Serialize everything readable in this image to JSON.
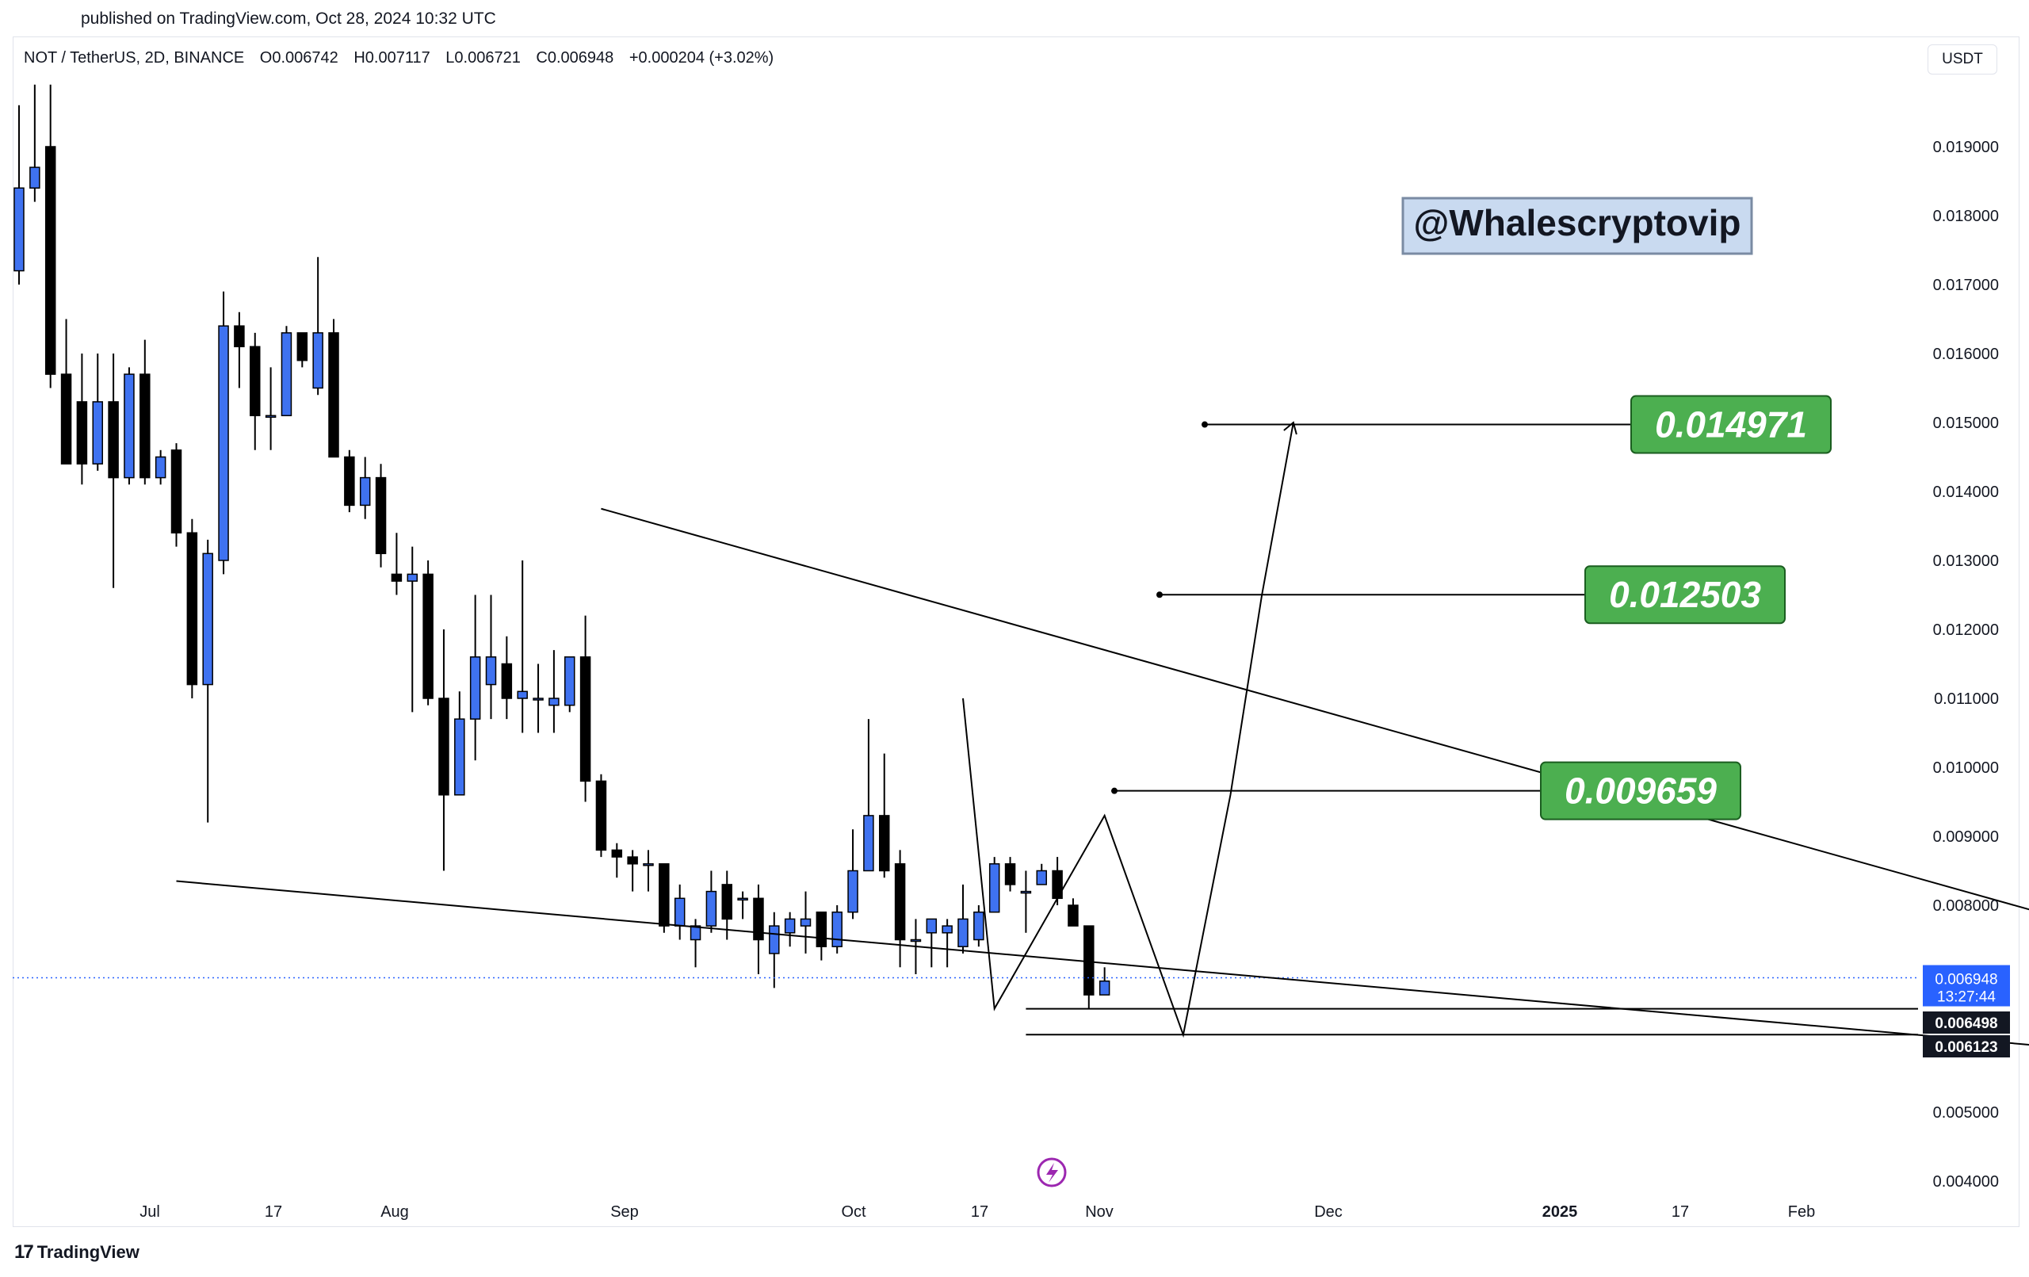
{
  "header": {
    "published": "published on TradingView.com, Oct 28, 2024 10:32 UTC"
  },
  "legend": {
    "symbol": "NOT / TetherUS, 2D, BINANCE",
    "open": "O0.006742",
    "high": "H0.007117",
    "low": "L0.006721",
    "close": "C0.006948",
    "change": "+0.000204 (+3.02%)"
  },
  "currency_button": "USDT",
  "watermark": "@Whalescryptovip",
  "footer": {
    "brand": "TradingView"
  },
  "colors": {
    "up": "#2962ff",
    "up_fill": "#3f72f0",
    "down": "#000000",
    "target_box": "#4caf50",
    "watermark_bg": "#c9daf0",
    "last_price_badge": "#2962ff",
    "level_badge": "#131722"
  },
  "icons": [
    "tradingview-logo-icon",
    "lightning-icon"
  ],
  "chart_data": {
    "type": "candlestick",
    "symbol": "NOT / TetherUS",
    "timeframe": "2D",
    "exchange": "BINANCE",
    "y_ticks": [
      "0.019000",
      "0.018000",
      "0.017000",
      "0.016000",
      "0.015000",
      "0.014000",
      "0.013000",
      "0.012000",
      "0.011000",
      "0.010000",
      "0.009000",
      "0.008000",
      "0.005000",
      "0.004000"
    ],
    "x_ticks": [
      {
        "label": "Jul",
        "bold": false
      },
      {
        "label": "17",
        "bold": false
      },
      {
        "label": "Aug",
        "bold": false
      },
      {
        "label": "Sep",
        "bold": false
      },
      {
        "label": "Oct",
        "bold": false
      },
      {
        "label": "17",
        "bold": false
      },
      {
        "label": "Nov",
        "bold": false
      },
      {
        "label": "Dec",
        "bold": false
      },
      {
        "label": "2025",
        "bold": true
      },
      {
        "label": "17",
        "bold": false
      },
      {
        "label": "Feb",
        "bold": false
      }
    ],
    "ylim": [
      0.0037,
      0.0201
    ],
    "last_price": {
      "value": "0.006948",
      "countdown": "13:27:44"
    },
    "levels": [
      "0.006498",
      "0.006123"
    ],
    "targets": [
      "0.014971",
      "0.012503",
      "0.009659"
    ],
    "candles": [
      {
        "o": 0.0172,
        "h": 0.0196,
        "l": 0.017,
        "c": 0.0184
      },
      {
        "o": 0.0184,
        "h": 0.0199,
        "l": 0.0182,
        "c": 0.0187
      },
      {
        "o": 0.019,
        "h": 0.0199,
        "l": 0.0155,
        "c": 0.0157
      },
      {
        "o": 0.0157,
        "h": 0.0165,
        "l": 0.0144,
        "c": 0.0144
      },
      {
        "o": 0.0153,
        "h": 0.016,
        "l": 0.0141,
        "c": 0.0144
      },
      {
        "o": 0.0144,
        "h": 0.016,
        "l": 0.0143,
        "c": 0.0153
      },
      {
        "o": 0.0153,
        "h": 0.016,
        "l": 0.0126,
        "c": 0.0142
      },
      {
        "o": 0.0142,
        "h": 0.0158,
        "l": 0.0141,
        "c": 0.0157
      },
      {
        "o": 0.0157,
        "h": 0.0162,
        "l": 0.0141,
        "c": 0.0142
      },
      {
        "o": 0.0142,
        "h": 0.0146,
        "l": 0.0141,
        "c": 0.0145
      },
      {
        "o": 0.0146,
        "h": 0.0147,
        "l": 0.0132,
        "c": 0.0134
      },
      {
        "o": 0.0134,
        "h": 0.0136,
        "l": 0.011,
        "c": 0.0112
      },
      {
        "o": 0.0112,
        "h": 0.0133,
        "l": 0.0092,
        "c": 0.0131
      },
      {
        "o": 0.013,
        "h": 0.0169,
        "l": 0.0128,
        "c": 0.0164
      },
      {
        "o": 0.0164,
        "h": 0.0166,
        "l": 0.0155,
        "c": 0.0161
      },
      {
        "o": 0.0161,
        "h": 0.0163,
        "l": 0.0146,
        "c": 0.0151
      },
      {
        "o": 0.0151,
        "h": 0.0158,
        "l": 0.0146,
        "c": 0.0151
      },
      {
        "o": 0.0151,
        "h": 0.0164,
        "l": 0.0151,
        "c": 0.0163
      },
      {
        "o": 0.0163,
        "h": 0.0163,
        "l": 0.0158,
        "c": 0.0159
      },
      {
        "o": 0.0155,
        "h": 0.0174,
        "l": 0.0154,
        "c": 0.0163
      },
      {
        "o": 0.0163,
        "h": 0.0165,
        "l": 0.0145,
        "c": 0.0145
      },
      {
        "o": 0.0145,
        "h": 0.0146,
        "l": 0.0137,
        "c": 0.0138
      },
      {
        "o": 0.0138,
        "h": 0.0145,
        "l": 0.0136,
        "c": 0.0142
      },
      {
        "o": 0.0142,
        "h": 0.0144,
        "l": 0.0129,
        "c": 0.0131
      },
      {
        "o": 0.0128,
        "h": 0.0134,
        "l": 0.0125,
        "c": 0.0127
      },
      {
        "o": 0.0127,
        "h": 0.0132,
        "l": 0.0108,
        "c": 0.0128
      },
      {
        "o": 0.0128,
        "h": 0.013,
        "l": 0.0109,
        "c": 0.011
      },
      {
        "o": 0.011,
        "h": 0.012,
        "l": 0.0085,
        "c": 0.0096
      },
      {
        "o": 0.0096,
        "h": 0.0111,
        "l": 0.0096,
        "c": 0.0107
      },
      {
        "o": 0.0107,
        "h": 0.0125,
        "l": 0.0101,
        "c": 0.0116
      },
      {
        "o": 0.0112,
        "h": 0.0125,
        "l": 0.0107,
        "c": 0.0116
      },
      {
        "o": 0.0115,
        "h": 0.0119,
        "l": 0.0107,
        "c": 0.011
      },
      {
        "o": 0.011,
        "h": 0.013,
        "l": 0.0105,
        "c": 0.0111
      },
      {
        "o": 0.011,
        "h": 0.0115,
        "l": 0.0105,
        "c": 0.011
      },
      {
        "o": 0.0109,
        "h": 0.0117,
        "l": 0.0105,
        "c": 0.011
      },
      {
        "o": 0.0109,
        "h": 0.0116,
        "l": 0.0108,
        "c": 0.0116
      },
      {
        "o": 0.0116,
        "h": 0.0122,
        "l": 0.0095,
        "c": 0.0098
      },
      {
        "o": 0.0098,
        "h": 0.0099,
        "l": 0.0087,
        "c": 0.0088
      },
      {
        "o": 0.0088,
        "h": 0.0089,
        "l": 0.0084,
        "c": 0.0087
      },
      {
        "o": 0.0087,
        "h": 0.0088,
        "l": 0.0082,
        "c": 0.0086
      },
      {
        "o": 0.0086,
        "h": 0.0088,
        "l": 0.0082,
        "c": 0.0086
      },
      {
        "o": 0.0086,
        "h": 0.0086,
        "l": 0.0076,
        "c": 0.0077
      },
      {
        "o": 0.0077,
        "h": 0.0083,
        "l": 0.0075,
        "c": 0.0081
      },
      {
        "o": 0.0075,
        "h": 0.0078,
        "l": 0.0071,
        "c": 0.0077
      },
      {
        "o": 0.0077,
        "h": 0.0085,
        "l": 0.0076,
        "c": 0.0082
      },
      {
        "o": 0.0083,
        "h": 0.0085,
        "l": 0.0075,
        "c": 0.0078
      },
      {
        "o": 0.0081,
        "h": 0.0082,
        "l": 0.0078,
        "c": 0.0081
      },
      {
        "o": 0.0081,
        "h": 0.0083,
        "l": 0.007,
        "c": 0.0075
      },
      {
        "o": 0.0073,
        "h": 0.0079,
        "l": 0.0068,
        "c": 0.0077
      },
      {
        "o": 0.0076,
        "h": 0.0079,
        "l": 0.0074,
        "c": 0.0078
      },
      {
        "o": 0.0077,
        "h": 0.0082,
        "l": 0.0073,
        "c": 0.0078
      },
      {
        "o": 0.0079,
        "h": 0.0079,
        "l": 0.0072,
        "c": 0.0074
      },
      {
        "o": 0.0074,
        "h": 0.008,
        "l": 0.0073,
        "c": 0.0079
      },
      {
        "o": 0.0079,
        "h": 0.0091,
        "l": 0.0078,
        "c": 0.0085
      },
      {
        "o": 0.0085,
        "h": 0.0107,
        "l": 0.0085,
        "c": 0.0093
      },
      {
        "o": 0.0093,
        "h": 0.0102,
        "l": 0.0084,
        "c": 0.0085
      },
      {
        "o": 0.0086,
        "h": 0.0088,
        "l": 0.0071,
        "c": 0.0075
      },
      {
        "o": 0.0075,
        "h": 0.0078,
        "l": 0.007,
        "c": 0.0075
      },
      {
        "o": 0.0076,
        "h": 0.0078,
        "l": 0.0071,
        "c": 0.0078
      },
      {
        "o": 0.0076,
        "h": 0.0078,
        "l": 0.0071,
        "c": 0.0077
      },
      {
        "o": 0.0074,
        "h": 0.0083,
        "l": 0.0073,
        "c": 0.0078
      },
      {
        "o": 0.0075,
        "h": 0.008,
        "l": 0.0074,
        "c": 0.0079
      },
      {
        "o": 0.0079,
        "h": 0.0087,
        "l": 0.0079,
        "c": 0.0086
      },
      {
        "o": 0.0086,
        "h": 0.0087,
        "l": 0.0082,
        "c": 0.0083
      },
      {
        "o": 0.0082,
        "h": 0.0085,
        "l": 0.0076,
        "c": 0.0082
      },
      {
        "o": 0.0083,
        "h": 0.0086,
        "l": 0.0083,
        "c": 0.0085
      },
      {
        "o": 0.0085,
        "h": 0.0087,
        "l": 0.008,
        "c": 0.0081
      },
      {
        "o": 0.008,
        "h": 0.0081,
        "l": 0.0077,
        "c": 0.0077
      },
      {
        "o": 0.0077,
        "h": 0.0077,
        "l": 0.0065,
        "c": 0.0067
      },
      {
        "o": 0.0067,
        "h": 0.0071,
        "l": 0.0067,
        "c": 0.0069
      }
    ],
    "trendlines": [
      {
        "name": "upper-wedge-line",
        "points": [
          [
            "c",
            "37",
            0.01375
          ],
          [
            "c",
            "144",
            0.0069
          ]
        ]
      },
      {
        "name": "lower-wedge-line",
        "points": [
          [
            "c",
            "10",
            0.00835
          ],
          [
            "c",
            "144",
            0.00565
          ]
        ]
      },
      {
        "name": "projection-path",
        "points": [
          [
            "c",
            "60",
            0.011
          ],
          [
            "c",
            "62",
            0.0065
          ],
          [
            "c",
            "69",
            0.0093
          ],
          [
            "c",
            "74",
            0.00612
          ],
          [
            "c",
            "77",
            0.0096
          ],
          [
            "c",
            "79",
            0.0125
          ],
          [
            "c",
            "81",
            0.015
          ]
        ]
      },
      {
        "name": "support-level-1",
        "points": [
          [
            "c",
            "64",
            0.006498
          ],
          [
            "r",
            "",
            0.006498
          ]
        ]
      },
      {
        "name": "support-level-2",
        "points": [
          [
            "c",
            "64",
            0.006123
          ],
          [
            "r",
            "",
            0.006123
          ]
        ]
      }
    ]
  }
}
